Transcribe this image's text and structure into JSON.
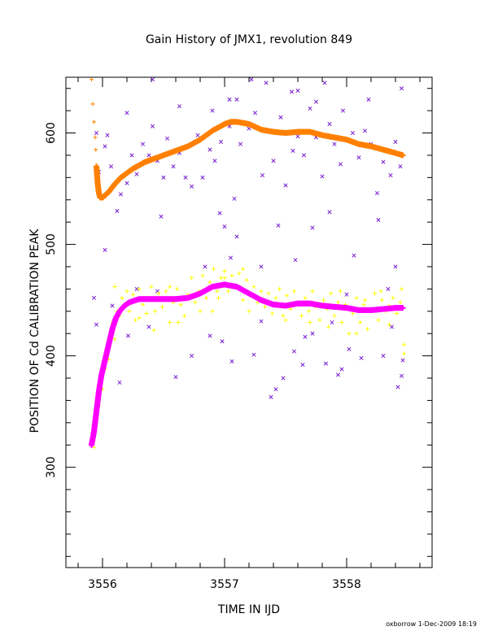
{
  "chart_data": {
    "type": "scatter",
    "title": "Gain History of JMX1, revolution 849",
    "xlabel": "TIME IN IJD",
    "ylabel": "POSITION OF Cd CALIBRATION PEAK",
    "footer": "oxborrow  1-Dec-2009 18:19",
    "xlim": [
      3555.7,
      3558.7
    ],
    "ylim": [
      210,
      650
    ],
    "x_ticks": [
      3556,
      3557,
      3558
    ],
    "y_ticks": [
      300,
      400,
      500,
      600
    ],
    "grid": false,
    "legend": "none",
    "series": [
      {
        "marker": "x",
        "color": "#7a1fd0",
        "points": [
          [
            3555.95,
            600
          ],
          [
            3555.97,
            565
          ],
          [
            3556.02,
            588
          ],
          [
            3556.04,
            598
          ],
          [
            3556.07,
            570
          ],
          [
            3556.09,
            553
          ],
          [
            3556.12,
            530
          ],
          [
            3556.15,
            545
          ],
          [
            3556.2,
            555
          ],
          [
            3556.24,
            580
          ],
          [
            3556.28,
            563
          ],
          [
            3556.33,
            590
          ],
          [
            3556.38,
            580
          ],
          [
            3556.41,
            606
          ],
          [
            3556.45,
            575
          ],
          [
            3556.5,
            560
          ],
          [
            3556.53,
            595
          ],
          [
            3556.58,
            570
          ],
          [
            3556.63,
            582
          ],
          [
            3556.68,
            560
          ],
          [
            3556.73,
            552
          ],
          [
            3556.78,
            598
          ],
          [
            3556.82,
            560
          ],
          [
            3556.88,
            585
          ],
          [
            3556.92,
            575
          ],
          [
            3556.97,
            592
          ],
          [
            3557.04,
            606
          ],
          [
            3557.08,
            541
          ],
          [
            3557.13,
            590
          ],
          [
            3557.2,
            604
          ],
          [
            3557.25,
            618
          ],
          [
            3557.31,
            562
          ],
          [
            3557.36,
            601
          ],
          [
            3557.4,
            575
          ],
          [
            3557.46,
            614
          ],
          [
            3557.5,
            553
          ],
          [
            3557.56,
            584
          ],
          [
            3557.6,
            597
          ],
          [
            3557.65,
            580
          ],
          [
            3557.7,
            622
          ],
          [
            3557.75,
            596
          ],
          [
            3557.8,
            561
          ],
          [
            3557.86,
            608
          ],
          [
            3557.9,
            590
          ],
          [
            3557.95,
            572
          ],
          [
            3558.01,
            593
          ],
          [
            3558.05,
            600
          ],
          [
            3558.1,
            578
          ],
          [
            3558.15,
            602
          ],
          [
            3558.2,
            590
          ],
          [
            3558.25,
            546
          ],
          [
            3558.3,
            574
          ],
          [
            3558.36,
            562
          ],
          [
            3558.4,
            592
          ],
          [
            3558.44,
            570
          ],
          [
            3556.41,
            648
          ],
          [
            3556.63,
            624
          ],
          [
            3556.9,
            620
          ],
          [
            3557.04,
            630
          ],
          [
            3557.22,
            648
          ],
          [
            3557.34,
            645
          ],
          [
            3557.55,
            637
          ],
          [
            3557.6,
            638
          ],
          [
            3557.75,
            628
          ],
          [
            3557.97,
            620
          ],
          [
            3558.18,
            630
          ],
          [
            3558.45,
            640
          ],
          [
            3556.2,
            618
          ],
          [
            3557.1,
            630
          ],
          [
            3557.82,
            645
          ],
          [
            3556.48,
            525
          ],
          [
            3556.96,
            528
          ],
          [
            3557.0,
            516
          ],
          [
            3557.1,
            507
          ],
          [
            3557.44,
            517
          ],
          [
            3557.72,
            515
          ],
          [
            3557.86,
            529
          ],
          [
            3558.26,
            522
          ],
          [
            3557.05,
            488
          ],
          [
            3557.3,
            480
          ],
          [
            3557.58,
            486
          ],
          [
            3558.4,
            480
          ],
          [
            3556.84,
            480
          ],
          [
            3558.06,
            490
          ],
          [
            3556.02,
            495
          ],
          [
            3555.93,
            452
          ],
          [
            3555.95,
            428
          ],
          [
            3556.08,
            445
          ],
          [
            3556.14,
            376
          ],
          [
            3556.21,
            418
          ],
          [
            3556.38,
            426
          ],
          [
            3556.6,
            381
          ],
          [
            3556.73,
            400
          ],
          [
            3556.88,
            418
          ],
          [
            3557.06,
            395
          ],
          [
            3557.3,
            431
          ],
          [
            3557.38,
            363
          ],
          [
            3557.42,
            370
          ],
          [
            3557.48,
            380
          ],
          [
            3557.57,
            404
          ],
          [
            3557.64,
            392
          ],
          [
            3557.72,
            420
          ],
          [
            3557.83,
            393
          ],
          [
            3557.93,
            383
          ],
          [
            3558.02,
            406
          ],
          [
            3558.12,
            398
          ],
          [
            3558.3,
            400
          ],
          [
            3558.37,
            426
          ],
          [
            3558.42,
            372
          ],
          [
            3558.45,
            382
          ],
          [
            3557.96,
            388
          ],
          [
            3558.34,
            460
          ],
          [
            3558.46,
            396
          ],
          [
            3557.24,
            401
          ],
          [
            3556.98,
            413
          ],
          [
            3557.66,
            417
          ],
          [
            3556.45,
            458
          ],
          [
            3558.0,
            455
          ],
          [
            3557.88,
            430
          ],
          [
            3556.28,
            460
          ]
        ]
      },
      {
        "marker": "+",
        "color": "#ffff00",
        "points": [
          [
            3555.91,
            325
          ],
          [
            3555.93,
            318
          ],
          [
            3555.94,
            340
          ],
          [
            3555.96,
            360
          ],
          [
            3555.97,
            355
          ],
          [
            3555.99,
            378
          ],
          [
            3556.0,
            370
          ],
          [
            3556.02,
            388
          ],
          [
            3556.04,
            405
          ],
          [
            3556.05,
            397
          ],
          [
            3556.07,
            418
          ],
          [
            3556.08,
            430
          ],
          [
            3556.1,
            415
          ],
          [
            3556.12,
            440
          ],
          [
            3556.14,
            436
          ],
          [
            3556.16,
            452
          ],
          [
            3556.18,
            444
          ],
          [
            3556.2,
            458
          ],
          [
            3556.22,
            440
          ],
          [
            3556.25,
            455
          ],
          [
            3556.27,
            432
          ],
          [
            3556.3,
            460
          ],
          [
            3556.33,
            446
          ],
          [
            3556.36,
            438
          ],
          [
            3556.38,
            452
          ],
          [
            3556.4,
            462
          ],
          [
            3556.43,
            440
          ],
          [
            3556.46,
            456
          ],
          [
            3556.49,
            444
          ],
          [
            3556.52,
            458
          ],
          [
            3556.55,
            430
          ],
          [
            3556.58,
            448
          ],
          [
            3556.61,
            460
          ],
          [
            3556.64,
            446
          ],
          [
            3556.67,
            436
          ],
          [
            3556.7,
            455
          ],
          [
            3556.73,
            470
          ],
          [
            3556.76,
            448
          ],
          [
            3556.79,
            458
          ],
          [
            3556.82,
            472
          ],
          [
            3556.85,
            452
          ],
          [
            3556.88,
            466
          ],
          [
            3556.91,
            478
          ],
          [
            3556.94,
            458
          ],
          [
            3556.97,
            470
          ],
          [
            3557.0,
            476
          ],
          [
            3557.03,
            458
          ],
          [
            3557.06,
            472
          ],
          [
            3557.09,
            462
          ],
          [
            3557.12,
            474
          ],
          [
            3557.15,
            450
          ],
          [
            3557.18,
            468
          ],
          [
            3557.21,
            456
          ],
          [
            3557.24,
            462
          ],
          [
            3557.27,
            448
          ],
          [
            3557.3,
            458
          ],
          [
            3557.33,
            444
          ],
          [
            3557.36,
            456
          ],
          [
            3557.39,
            438
          ],
          [
            3557.42,
            452
          ],
          [
            3557.45,
            446
          ],
          [
            3557.48,
            436
          ],
          [
            3557.51,
            454
          ],
          [
            3557.54,
            442
          ],
          [
            3557.57,
            458
          ],
          [
            3557.6,
            446
          ],
          [
            3557.63,
            436
          ],
          [
            3557.66,
            452
          ],
          [
            3557.69,
            440
          ],
          [
            3557.72,
            458
          ],
          [
            3557.75,
            444
          ],
          [
            3557.78,
            432
          ],
          [
            3557.81,
            450
          ],
          [
            3557.84,
            442
          ],
          [
            3557.87,
            456
          ],
          [
            3557.9,
            436
          ],
          [
            3557.93,
            448
          ],
          [
            3557.96,
            430
          ],
          [
            3557.99,
            446
          ],
          [
            3558.02,
            420
          ],
          [
            3558.05,
            438
          ],
          [
            3558.08,
            452
          ],
          [
            3558.11,
            430
          ],
          [
            3558.14,
            446
          ],
          [
            3558.17,
            424
          ],
          [
            3558.2,
            440
          ],
          [
            3558.23,
            456
          ],
          [
            3558.26,
            432
          ],
          [
            3558.29,
            450
          ],
          [
            3558.32,
            440
          ],
          [
            3558.35,
            428
          ],
          [
            3558.38,
            452
          ],
          [
            3558.41,
            438
          ],
          [
            3558.44,
            448
          ],
          [
            3558.47,
            402
          ],
          [
            3558.47,
            410
          ],
          [
            3558.45,
            460
          ],
          [
            3556.1,
            462
          ],
          [
            3556.3,
            434
          ],
          [
            3556.55,
            462
          ],
          [
            3556.8,
            440
          ],
          [
            3557.0,
            470
          ],
          [
            3557.2,
            440
          ],
          [
            3557.45,
            460
          ],
          [
            3557.7,
            430
          ],
          [
            3557.95,
            458
          ],
          [
            3558.15,
            450
          ],
          [
            3558.35,
            445
          ],
          [
            3556.42,
            423
          ],
          [
            3556.62,
            430
          ],
          [
            3556.9,
            440
          ],
          [
            3557.15,
            478
          ],
          [
            3557.05,
            462
          ],
          [
            3556.95,
            452
          ],
          [
            3557.5,
            432
          ],
          [
            3557.85,
            426
          ],
          [
            3558.08,
            420
          ],
          [
            3558.28,
            458
          ]
        ]
      },
      {
        "marker": "+",
        "color": "#ff8000",
        "points": [
          [
            3555.91,
            648
          ],
          [
            3555.92,
            626
          ],
          [
            3555.93,
            610
          ],
          [
            3555.94,
            596
          ],
          [
            3555.945,
            585
          ]
        ],
        "curve": [
          [
            3555.95,
            570
          ],
          [
            3555.96,
            555
          ],
          [
            3555.97,
            546
          ],
          [
            3555.98,
            542
          ],
          [
            3556.0,
            542
          ],
          [
            3556.05,
            547
          ],
          [
            3556.1,
            554
          ],
          [
            3556.15,
            560
          ],
          [
            3556.25,
            568
          ],
          [
            3556.35,
            574
          ],
          [
            3556.5,
            580
          ],
          [
            3556.7,
            588
          ],
          [
            3556.8,
            594
          ],
          [
            3556.9,
            602
          ],
          [
            3557.0,
            608
          ],
          [
            3557.05,
            610
          ],
          [
            3557.1,
            610
          ],
          [
            3557.2,
            608
          ],
          [
            3557.3,
            603
          ],
          [
            3557.4,
            601
          ],
          [
            3557.5,
            600
          ],
          [
            3557.6,
            601
          ],
          [
            3557.7,
            601
          ],
          [
            3557.8,
            598
          ],
          [
            3557.9,
            596
          ],
          [
            3558.0,
            594
          ],
          [
            3558.1,
            590
          ],
          [
            3558.2,
            588
          ],
          [
            3558.3,
            585
          ],
          [
            3558.4,
            582
          ],
          [
            3558.46,
            580
          ]
        ]
      },
      {
        "marker": "+",
        "color": "#ff00ff",
        "curve": [
          [
            3555.91,
            320
          ],
          [
            3555.93,
            332
          ],
          [
            3555.95,
            350
          ],
          [
            3555.97,
            368
          ],
          [
            3555.99,
            382
          ],
          [
            3556.02,
            396
          ],
          [
            3556.05,
            410
          ],
          [
            3556.08,
            424
          ],
          [
            3556.11,
            434
          ],
          [
            3556.14,
            440
          ],
          [
            3556.18,
            445
          ],
          [
            3556.22,
            448
          ],
          [
            3556.3,
            451
          ],
          [
            3556.4,
            451
          ],
          [
            3556.5,
            451
          ],
          [
            3556.6,
            451
          ],
          [
            3556.7,
            452
          ],
          [
            3556.8,
            456
          ],
          [
            3556.9,
            462
          ],
          [
            3557.0,
            464
          ],
          [
            3557.1,
            462
          ],
          [
            3557.2,
            456
          ],
          [
            3557.3,
            450
          ],
          [
            3557.4,
            446
          ],
          [
            3557.5,
            445
          ],
          [
            3557.6,
            447
          ],
          [
            3557.7,
            447
          ],
          [
            3557.8,
            445
          ],
          [
            3557.9,
            444
          ],
          [
            3558.0,
            443
          ],
          [
            3558.1,
            441
          ],
          [
            3558.2,
            441
          ],
          [
            3558.3,
            442
          ],
          [
            3558.4,
            443
          ],
          [
            3558.46,
            443
          ]
        ]
      }
    ]
  }
}
